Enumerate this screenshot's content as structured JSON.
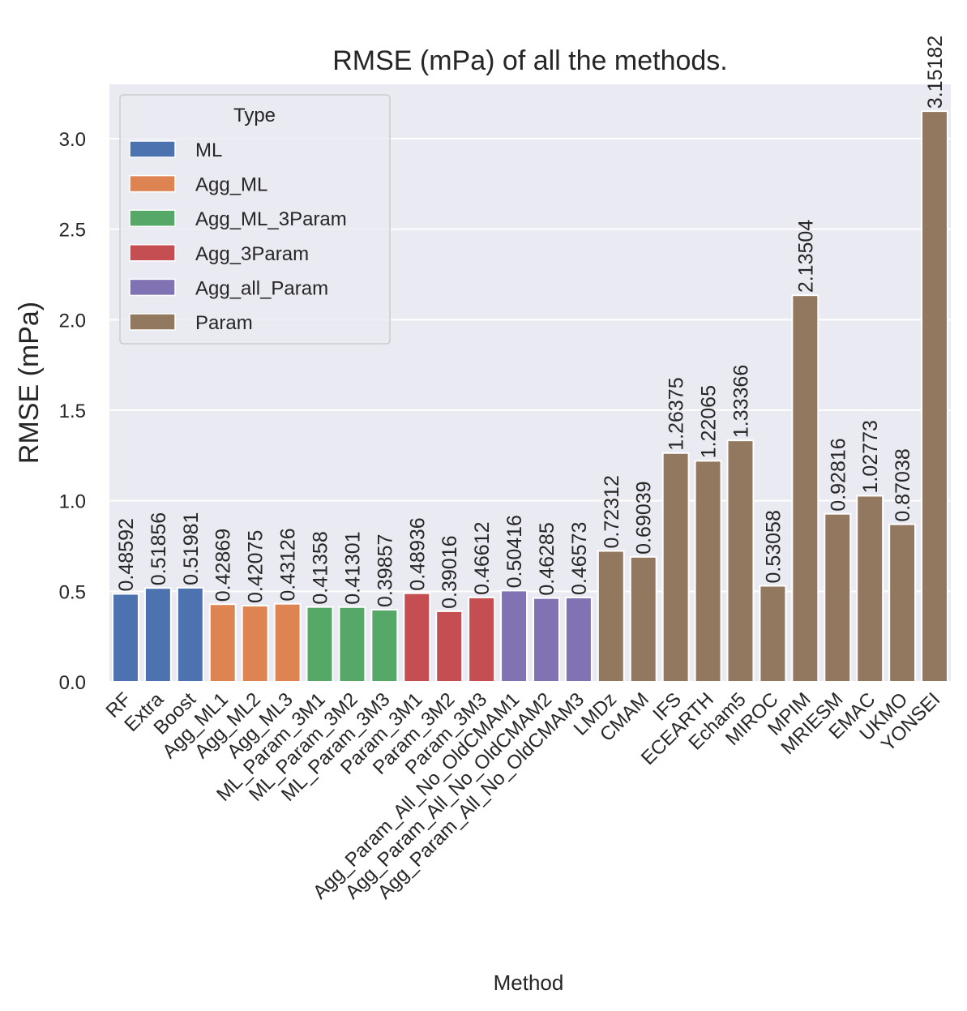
{
  "chart_data": {
    "type": "bar",
    "title": "RMSE (mPa) of all the methods.",
    "xlabel": "Method",
    "ylabel": "RMSE (mPa)",
    "ylim": [
      0,
      3.3
    ],
    "yticks": [
      "0.0",
      "0.5",
      "1.0",
      "1.5",
      "2.0",
      "2.5",
      "3.0"
    ],
    "grid": true,
    "legend": {
      "title": "Type",
      "placement": "top-left",
      "entries": [
        {
          "name": "ML",
          "color": "#4c72b0"
        },
        {
          "name": "Agg_ML",
          "color": "#dd8452"
        },
        {
          "name": "Agg_ML_3Param",
          "color": "#55a868"
        },
        {
          "name": "Agg_3Param",
          "color": "#c44e52"
        },
        {
          "name": "Agg_all_Param",
          "color": "#8172b3"
        },
        {
          "name": "Param",
          "color": "#937860"
        }
      ]
    },
    "categories": [
      "RF",
      "Extra",
      "Boost",
      "Agg_ML1",
      "Agg_ML2",
      "Agg_ML3",
      "ML_Param_3M1",
      "ML_Param_3M2",
      "ML_Param_3M3",
      "Param_3M1",
      "Param_3M2",
      "Param_3M3",
      "Agg_Param_All_No_OldCMAM1",
      "Agg_Param_All_No_OldCMAM2",
      "Agg_Param_All_No_OldCMAM3",
      "LMDz",
      "CMAM",
      "IFS",
      "ECEARTH",
      "Echam5",
      "MIROC",
      "MPIM",
      "MRIESM",
      "EMAC",
      "UKMO",
      "YONSEI"
    ],
    "values": [
      0.48592,
      0.51856,
      0.51981,
      0.42869,
      0.42075,
      0.43126,
      0.41358,
      0.41301,
      0.39857,
      0.48936,
      0.39016,
      0.46612,
      0.50416,
      0.46285,
      0.46573,
      0.72312,
      0.69039,
      1.26375,
      1.22065,
      1.33366,
      0.53058,
      2.13504,
      0.92816,
      1.02773,
      0.87038,
      3.15182
    ],
    "value_labels": [
      "0.48592",
      "0.51856",
      "0.51981",
      "0.42869",
      "0.42075",
      "0.43126",
      "0.41358",
      "0.41301",
      "0.39857",
      "0.48936",
      "0.39016",
      "0.46612",
      "0.50416",
      "0.46285",
      "0.46573",
      "0.72312",
      "0.69039",
      "1.26375",
      "1.22065",
      "1.33366",
      "0.53058",
      "2.13504",
      "0.92816",
      "1.02773",
      "0.87038",
      "3.15182"
    ],
    "types": [
      "ML",
      "ML",
      "ML",
      "Agg_ML",
      "Agg_ML",
      "Agg_ML",
      "Agg_ML_3Param",
      "Agg_ML_3Param",
      "Agg_ML_3Param",
      "Agg_3Param",
      "Agg_3Param",
      "Agg_3Param",
      "Agg_all_Param",
      "Agg_all_Param",
      "Agg_all_Param",
      "Param",
      "Param",
      "Param",
      "Param",
      "Param",
      "Param",
      "Param",
      "Param",
      "Param",
      "Param",
      "Param"
    ]
  }
}
